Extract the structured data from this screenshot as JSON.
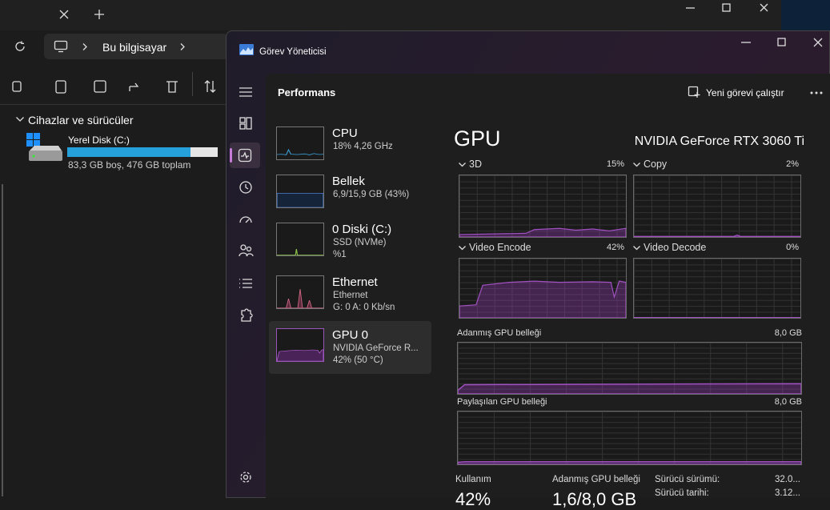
{
  "explorer": {
    "address": "Bu bilgisayar",
    "section": "Cihazlar ve sürücüler",
    "drive": {
      "name": "Yerel Disk (C:)",
      "info": "83,3 GB boş, 476 GB toplam"
    }
  },
  "task_manager": {
    "title": "Görev Yöneticisi",
    "page": "Performans",
    "run_task": "Yeni görevi çalıştır",
    "devices": [
      {
        "name": "CPU",
        "lines": [
          "18% 4,26 GHz"
        ]
      },
      {
        "name": "Bellek",
        "lines": [
          "6,9/15,9 GB (43%)"
        ]
      },
      {
        "name": "0 Diski (C:)",
        "lines": [
          "SSD (NVMe)",
          "%1"
        ]
      },
      {
        "name": "Ethernet",
        "lines": [
          "Ethernet",
          "G: 0 A: 0 Kb/sn"
        ]
      },
      {
        "name": "GPU 0",
        "lines": [
          "NVIDIA GeForce R...",
          "42% (50 °C)"
        ]
      }
    ],
    "gpu": {
      "heading": "GPU",
      "model": "NVIDIA GeForce RTX 3060 Ti",
      "engines": [
        {
          "name": "3D",
          "value": "15%"
        },
        {
          "name": "Copy",
          "value": "2%"
        },
        {
          "name": "Video Encode",
          "value": "42%"
        },
        {
          "name": "Video Decode",
          "value": "0%"
        }
      ],
      "memory": [
        {
          "name": "Adanmış GPU belleği",
          "value": "8,0 GB"
        },
        {
          "name": "Paylaşılan GPU belleği",
          "value": "8,0 GB"
        }
      ],
      "stats": [
        {
          "label": "Kullanım",
          "value": "42%"
        },
        {
          "label": "Adanmış GPU belleği",
          "value": "1,6/8,0 GB"
        },
        {
          "label": "Sürücü sürümü:",
          "value": "32.0..."
        },
        {
          "label": "Sürücü tarihi:",
          "value": "3.12..."
        }
      ]
    }
  }
}
